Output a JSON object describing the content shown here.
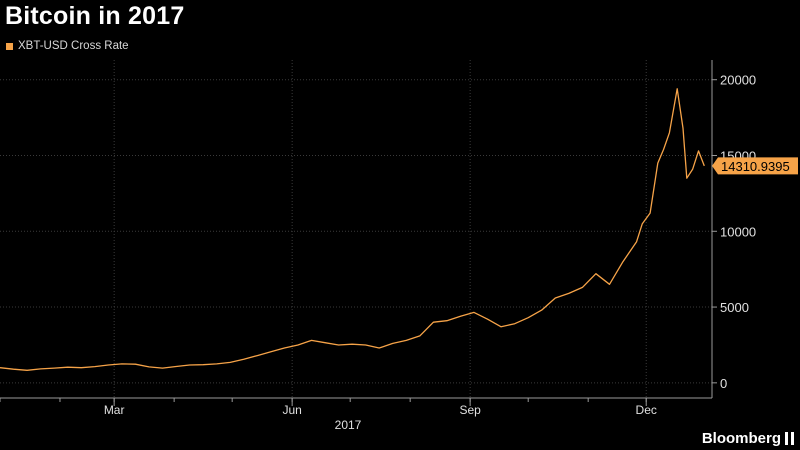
{
  "chart_data": {
    "type": "line",
    "title": "Bitcoin in 2017",
    "series": [
      {
        "name": "XBT-USD Cross Rate",
        "color": "#f6a348",
        "x": [
          "2017-01-01",
          "2017-01-08",
          "2017-01-15",
          "2017-01-22",
          "2017-01-29",
          "2017-02-05",
          "2017-02-12",
          "2017-02-19",
          "2017-02-26",
          "2017-03-05",
          "2017-03-12",
          "2017-03-19",
          "2017-03-26",
          "2017-04-02",
          "2017-04-09",
          "2017-04-16",
          "2017-04-23",
          "2017-04-30",
          "2017-05-07",
          "2017-05-14",
          "2017-05-21",
          "2017-05-28",
          "2017-06-04",
          "2017-06-11",
          "2017-06-18",
          "2017-06-25",
          "2017-07-02",
          "2017-07-09",
          "2017-07-16",
          "2017-07-23",
          "2017-07-30",
          "2017-08-06",
          "2017-08-13",
          "2017-08-20",
          "2017-08-27",
          "2017-09-03",
          "2017-09-10",
          "2017-09-17",
          "2017-09-24",
          "2017-10-01",
          "2017-10-08",
          "2017-10-15",
          "2017-10-22",
          "2017-10-29",
          "2017-11-05",
          "2017-11-12",
          "2017-11-19",
          "2017-11-26",
          "2017-11-29",
          "2017-12-03",
          "2017-12-07",
          "2017-12-10",
          "2017-12-13",
          "2017-12-17",
          "2017-12-20",
          "2017-12-22",
          "2017-12-25",
          "2017-12-28",
          "2017-12-31"
        ],
        "values": [
          1000,
          900,
          830,
          920,
          970,
          1030,
          1000,
          1070,
          1180,
          1250,
          1230,
          1050,
          970,
          1080,
          1180,
          1200,
          1250,
          1350,
          1560,
          1800,
          2050,
          2300,
          2500,
          2800,
          2650,
          2500,
          2550,
          2500,
          2300,
          2600,
          2800,
          3100,
          4000,
          4100,
          4400,
          4650,
          4200,
          3700,
          3900,
          4300,
          4800,
          5600,
          5900,
          6300,
          7200,
          6500,
          8000,
          9300,
          10500,
          11200,
          14500,
          15400,
          16500,
          19400,
          16800,
          13500,
          14100,
          15300,
          14310
        ]
      }
    ],
    "x_ticks": [
      {
        "date": "2017-03-01",
        "label": "Mar"
      },
      {
        "date": "2017-06-01",
        "label": "Jun"
      },
      {
        "date": "2017-09-01",
        "label": "Sep"
      },
      {
        "date": "2017-12-01",
        "label": "Dec"
      }
    ],
    "x_minor_ticks": [
      "2017-01-01",
      "2017-02-01",
      "2017-03-01",
      "2017-04-01",
      "2017-05-01",
      "2017-06-01",
      "2017-07-01",
      "2017-08-01",
      "2017-09-01",
      "2017-10-01",
      "2017-11-01",
      "2017-12-01"
    ],
    "x_group_label": "2017",
    "y_ticks": [
      0,
      5000,
      10000,
      15000,
      20000
    ],
    "ylim": [
      -1000,
      21300
    ],
    "xlim": [
      "2017-01-01",
      "2018-01-04"
    ],
    "last_value_label": "14310.9395",
    "last_value": 14310.9395,
    "grid": true,
    "legend_position": "top-left",
    "y_axis_position": "right",
    "colors": {
      "background": "#000000",
      "grid": "#3a3a3a",
      "axis": "#9a9a9a",
      "tick_text": "#e0e0e0",
      "badge": "#f6a348",
      "badge_text": "#000000"
    }
  },
  "brand": {
    "name": "Bloomberg"
  }
}
